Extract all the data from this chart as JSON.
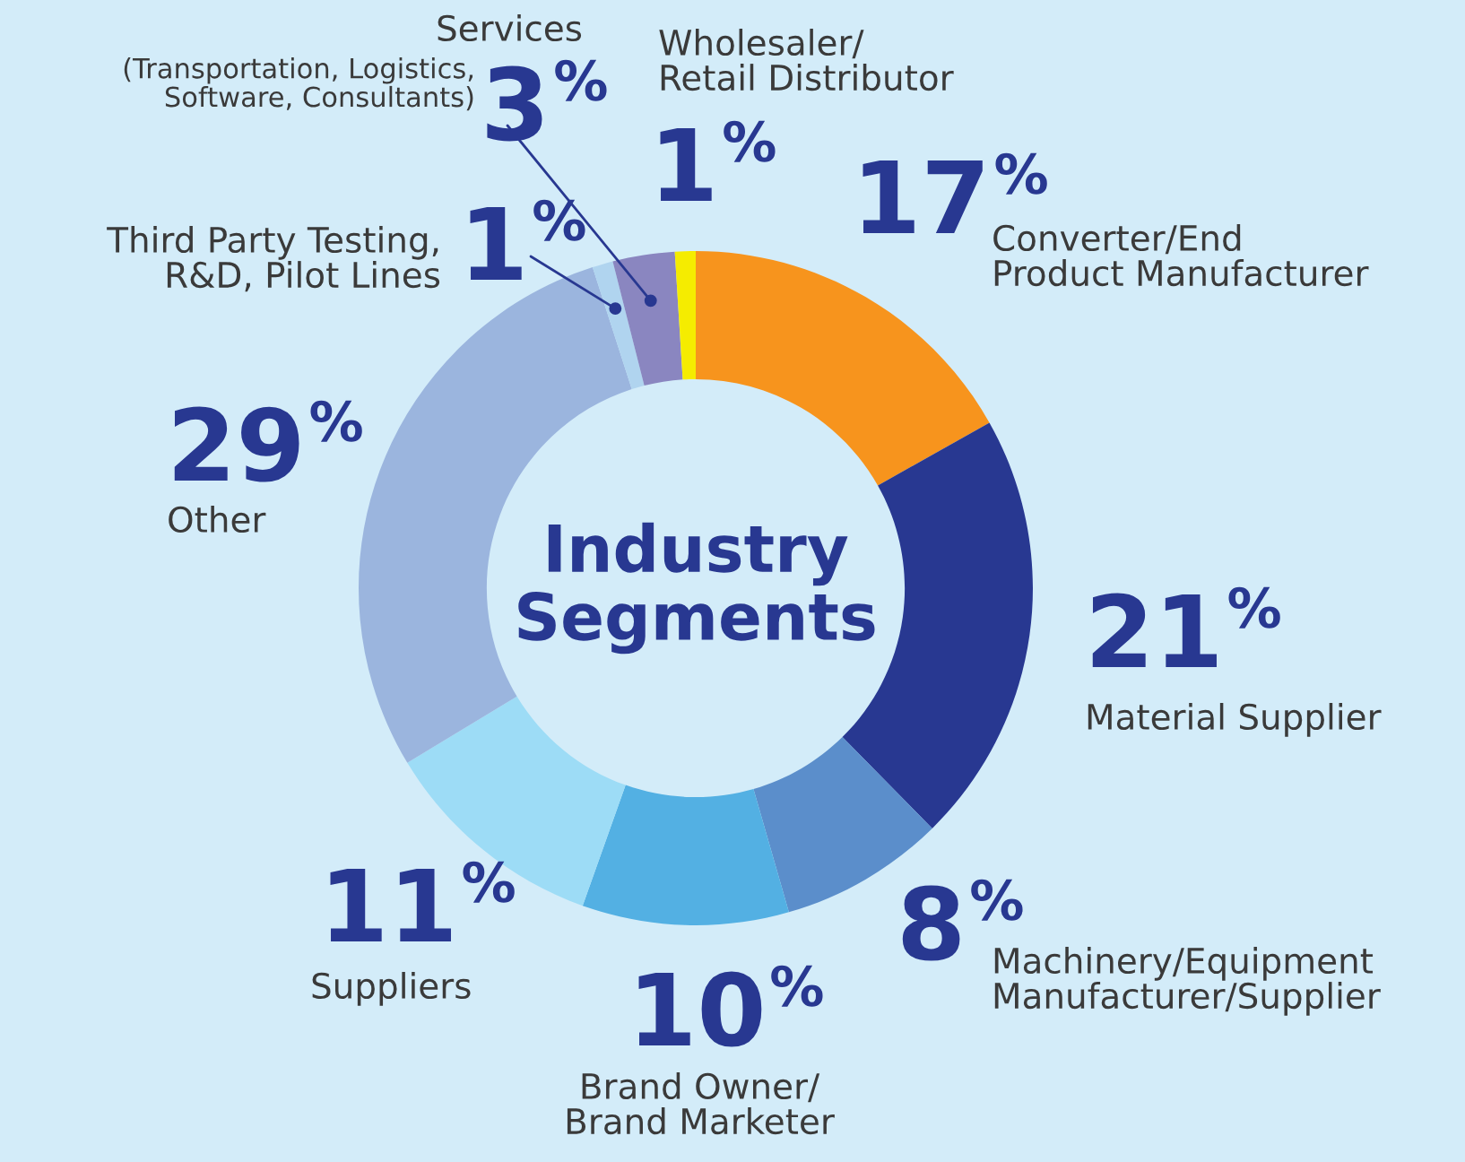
{
  "chart_data": {
    "type": "donut",
    "title": "Industry\nSegments",
    "categories": [
      "Converter/End\nProduct Manufacturer",
      "Material Supplier",
      "Machinery/Equipment\nManufacturer/Supplier",
      "Brand Owner/\nBrand Marketer",
      "Suppliers",
      "Other",
      "Third Party Testing,\nR&D, Pilot Lines",
      "Services\n(Transportation, Logistics,\nSoftware, Consultants)",
      "Wholesaler/\nRetail Distributor"
    ],
    "values": [
      17,
      21,
      8,
      10,
      11,
      29,
      1,
      3,
      1
    ],
    "value_labels": [
      "17%",
      "21%",
      "8%",
      "10%",
      "11%",
      "29%",
      "1%",
      "3%",
      "1%"
    ],
    "colors": [
      "#f7941d",
      "#283891",
      "#5b8ecb",
      "#53b0e3",
      "#9ddcf6",
      "#9bb5de",
      "#b0d4ef",
      "#8a86c0",
      "#f5ec00"
    ],
    "legend": false
  }
}
